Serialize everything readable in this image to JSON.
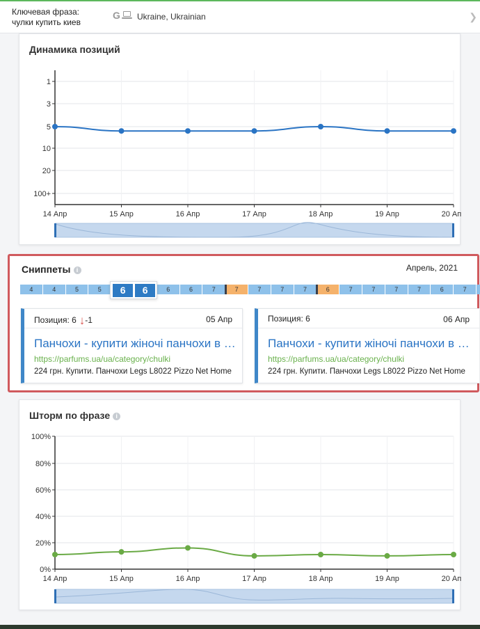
{
  "header": {
    "keyword_label": "Ключевая фраза:",
    "keyword_value": "чулки купить киев",
    "engine_icon": "G",
    "device_icon": "laptop-icon",
    "region": "Ukraine, Ukrainian",
    "next_icon": "chevron-right-icon"
  },
  "positions_card": {
    "title": "Динамика позиций",
    "chart_data": {
      "type": "line",
      "x": [
        "14 Апр",
        "15 Апр",
        "16 Апр",
        "17 Апр",
        "18 Апр",
        "19 Апр",
        "20 Апр"
      ],
      "y_ticks": [
        "1",
        "3",
        "5",
        "10",
        "20",
        "100+"
      ],
      "y_scale": "position-rank-inverted",
      "series": [
        {
          "values": [
            5,
            6,
            6,
            6,
            5,
            6,
            6
          ],
          "color": "#2a74c4"
        }
      ],
      "grid": true,
      "navigator": true
    }
  },
  "snippets": {
    "title": "Сниппеты",
    "info_icon": "info-icon",
    "period": "Апрель, 2021",
    "timeline": [
      {
        "value": "4",
        "kind": "blue"
      },
      {
        "value": "4",
        "kind": "blue"
      },
      {
        "value": "5",
        "kind": "blue"
      },
      {
        "value": "5",
        "kind": "blue"
      },
      {
        "value": "6",
        "kind": "selected"
      },
      {
        "value": "6",
        "kind": "selected"
      },
      {
        "value": "6",
        "kind": "blue"
      },
      {
        "value": "6",
        "kind": "blue"
      },
      {
        "value": "7",
        "kind": "blue"
      },
      {
        "value": "7",
        "kind": "orange"
      },
      {
        "value": "7",
        "kind": "blue"
      },
      {
        "value": "7",
        "kind": "blue"
      },
      {
        "value": "7",
        "kind": "blue"
      },
      {
        "value": "6",
        "kind": "orange"
      },
      {
        "value": "7",
        "kind": "blue"
      },
      {
        "value": "7",
        "kind": "blue"
      },
      {
        "value": "7",
        "kind": "blue"
      },
      {
        "value": "7",
        "kind": "blue"
      },
      {
        "value": "6",
        "kind": "blue"
      },
      {
        "value": "7",
        "kind": "blue"
      },
      {
        "value": "7",
        "kind": "blue"
      }
    ],
    "cards": [
      {
        "position": "Позиция: 6",
        "delta": "-1",
        "date": "05 Апр",
        "title": "Панчохи - купити жіночі панчохи в Київі",
        "url": "https://parfums.ua/ua/category/chulki",
        "description": "224 грн. Купити. Панчохи Legs L8022 Pizzo Net Home"
      },
      {
        "position": "Позиция: 6",
        "delta": "",
        "date": "06 Апр",
        "title": "Панчохи - купити жіночі панчохи в Київі",
        "url": "https://parfums.ua/ua/category/chulki",
        "description": "224 грн. Купити. Панчохи Legs L8022 Pizzo Net Home"
      }
    ]
  },
  "storm_card": {
    "title": "Шторм по фразе",
    "info_icon": "info-icon",
    "chart_data": {
      "type": "line",
      "x": [
        "14 Апр",
        "15 Апр",
        "16 Апр",
        "17 Апр",
        "18 Апр",
        "19 Апр",
        "20 Апр"
      ],
      "y_ticks": [
        "0%",
        "20%",
        "40%",
        "60%",
        "80%",
        "100%"
      ],
      "ylim": [
        0,
        100
      ],
      "series": [
        {
          "values": [
            11,
            13,
            16,
            10,
            11,
            10,
            11
          ],
          "color": "#6aaa45"
        }
      ],
      "grid": true,
      "navigator": true
    }
  }
}
